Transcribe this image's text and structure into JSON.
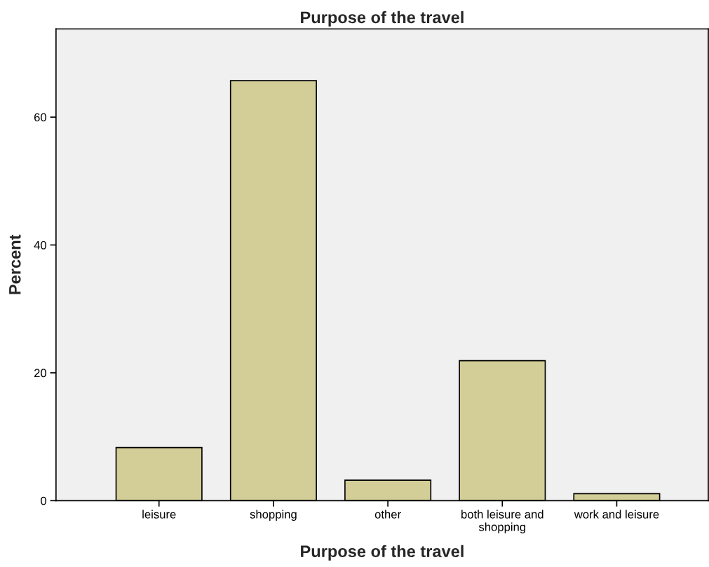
{
  "chart_data": {
    "type": "bar",
    "title": "Purpose of the travel",
    "xlabel": "Purpose of the travel",
    "ylabel": "Percent",
    "categories": [
      "leisure",
      "shopping",
      "other",
      "both leisure and\nshopping",
      "work and leisure"
    ],
    "values": [
      8.3,
      65.7,
      3.2,
      21.9,
      1.1
    ],
    "color": "#d3ce97",
    "ylim": [
      0,
      73.8
    ],
    "yticks": [
      0,
      20,
      40,
      60
    ],
    "grid": false,
    "legend": false
  }
}
